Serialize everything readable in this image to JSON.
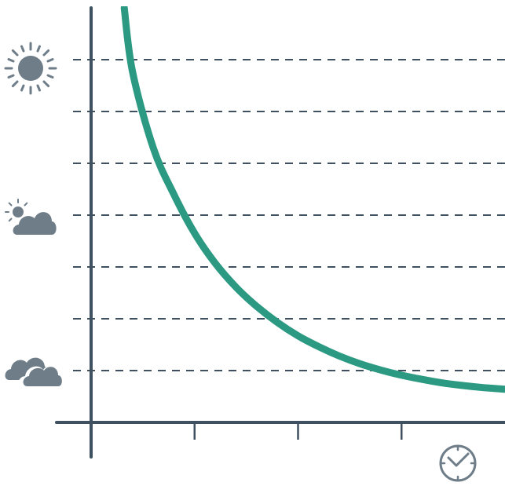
{
  "chart_data": {
    "type": "line",
    "title": "",
    "xlabel": "",
    "ylabel": "",
    "x_axis_icon": "clock-icon",
    "y_axis_icons": [
      "sun-icon",
      "partly-cloudy-icon",
      "cloudy-icon"
    ],
    "grid": "horizontal-dashed",
    "xlim": [
      0,
      4
    ],
    "ylim": [
      0,
      7
    ],
    "y_gridlines": [
      1,
      2,
      3,
      4,
      5,
      6,
      7
    ],
    "x_ticks": [
      1,
      2,
      3
    ],
    "series": [
      {
        "x": [
          0.32,
          0.4,
          0.6,
          0.8,
          1.0,
          1.2,
          1.4,
          1.6,
          1.8,
          2.0,
          2.2,
          2.4,
          2.6,
          2.8,
          3.0,
          3.2,
          3.4,
          3.6,
          3.8,
          4.0
        ],
        "values": [
          8.0,
          6.77,
          5.3,
          4.4,
          3.65,
          3.07,
          2.61,
          2.24,
          1.93,
          1.67,
          1.46,
          1.28,
          1.13,
          1.01,
          0.91,
          0.83,
          0.76,
          0.71,
          0.67,
          0.64
        ]
      }
    ]
  },
  "colors": {
    "axis": "#3f5161",
    "curve": "#2c9a82",
    "grid": "#3f5161",
    "icon": "#6e7d88"
  }
}
